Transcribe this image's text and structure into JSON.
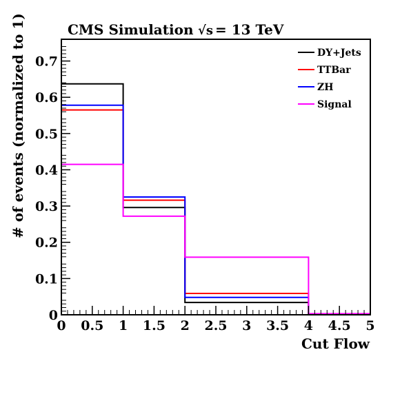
{
  "chart_data": {
    "type": "step-histogram",
    "title": "CMS Simulation",
    "energy_label": "= 13 TeV",
    "energy_symbol": "√s",
    "xlabel": "Cut Flow",
    "ylabel": "# of events (normalized to 1)",
    "xlim": [
      0,
      5
    ],
    "ylim": [
      0,
      0.76
    ],
    "grid": false,
    "legend_position": "top-right",
    "bin_edges": [
      0,
      1,
      2,
      3,
      4,
      5
    ],
    "x_ticks": [
      "0",
      "0.5",
      "1",
      "1.5",
      "2",
      "2.5",
      "3",
      "3.5",
      "4",
      "4.5",
      "5"
    ],
    "x_tick_values": [
      0,
      0.5,
      1,
      1.5,
      2,
      2.5,
      3,
      3.5,
      4,
      4.5,
      5
    ],
    "y_ticks": [
      "0",
      "0.1",
      "0.2",
      "0.3",
      "0.4",
      "0.5",
      "0.6",
      "0.7"
    ],
    "y_tick_values": [
      0,
      0.1,
      0.2,
      0.3,
      0.4,
      0.5,
      0.6,
      0.7
    ],
    "series": [
      {
        "name": "DY+Jets",
        "color": "#000000",
        "values": [
          0.637,
          0.296,
          0.034,
          0.034,
          0.002
        ]
      },
      {
        "name": "TTBar",
        "color": "#ff0000",
        "values": [
          0.565,
          0.316,
          0.059,
          0.059,
          0.002
        ]
      },
      {
        "name": "ZH",
        "color": "#0000ff",
        "values": [
          0.578,
          0.325,
          0.048,
          0.048,
          0.001
        ]
      },
      {
        "name": "Signal",
        "color": "#ff00ff",
        "values": [
          0.415,
          0.272,
          0.159,
          0.159,
          0.003
        ]
      }
    ]
  }
}
